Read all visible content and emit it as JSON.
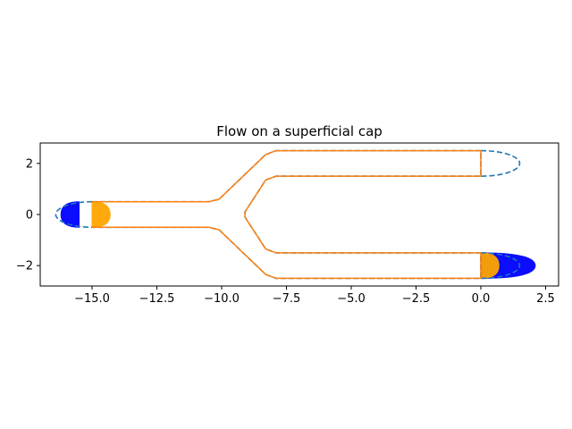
{
  "chart_data": {
    "type": "line",
    "title": "Flow on a superficial cap",
    "xlabel": "",
    "ylabel": "",
    "xlim": [
      -17.0,
      3.0
    ],
    "ylim": [
      -2.8,
      2.8
    ],
    "aspect": "equal",
    "grid": false,
    "xticks": [
      -15.0,
      -12.5,
      -10.0,
      -7.5,
      -5.0,
      -2.5,
      0.0,
      2.5
    ],
    "xtick_labels": [
      "−15.0",
      "−12.5",
      "−10.0",
      "−7.5",
      "−5.0",
      "−2.5",
      "0.0",
      "2.5"
    ],
    "yticks": [
      2,
      0,
      -2
    ],
    "ytick_labels": [
      "2",
      "0",
      "−2"
    ],
    "colors": {
      "dashed": "#1f77b4",
      "solid": "#ff7f0e",
      "left_cap": "#0000ff",
      "right_cap": "#0000ff",
      "inflow": "#ffa500"
    },
    "series": [
      {
        "style": "dashed",
        "x": [
          -15.0,
          -10.5,
          -10.1,
          -8.3,
          -7.9,
          0.0,
          0.0,
          -7.9,
          -8.3,
          -9.1,
          -9.1,
          -8.3,
          -7.9,
          0.0,
          0.0,
          -7.9,
          -8.3,
          -10.1,
          -10.5,
          -15.0
        ],
        "y": [
          0.5,
          0.5,
          0.6,
          2.35,
          2.5,
          2.5,
          1.5,
          1.5,
          1.35,
          0.1,
          -0.1,
          -1.35,
          -1.5,
          -1.5,
          -2.5,
          -2.5,
          -2.35,
          -0.6,
          -0.5,
          -0.5
        ]
      },
      {
        "style": "solid",
        "x": [
          -15.0,
          -10.5,
          -10.1,
          -8.3,
          -7.9,
          0.0,
          0.0,
          -7.9,
          -8.3,
          -9.1,
          -9.1,
          -8.3,
          -7.9,
          0.0,
          0.0,
          -7.9,
          -8.3,
          -10.1,
          -10.5,
          -15.0
        ],
        "y": [
          0.5,
          0.5,
          0.6,
          2.35,
          2.5,
          2.5,
          1.5,
          1.5,
          1.35,
          0.1,
          -0.1,
          -1.35,
          -1.5,
          -1.5,
          -2.5,
          -2.5,
          -2.35,
          -0.6,
          -0.5,
          -0.5
        ]
      }
    ],
    "end_caps": [
      {
        "style": "dashed",
        "center": [
          0.0,
          2.0
        ],
        "half_height": 0.5,
        "extent": 1.5
      },
      {
        "style": "dashed",
        "center": [
          0.0,
          -2.0
        ],
        "half_height": 0.5,
        "extent": 1.5
      },
      {
        "style": "dashed",
        "center": [
          -15.0,
          0.0
        ],
        "half_height": 0.5,
        "extent": -1.4
      }
    ],
    "flow_profiles": [
      {
        "name": "left-outflow",
        "color": "left_cap",
        "base_x": -15.5,
        "center_y": 0.0,
        "half_height": 0.5,
        "peak": -0.7
      },
      {
        "name": "left-inflow",
        "color": "inflow",
        "base_x": -15.0,
        "center_y": 0.0,
        "half_height": 0.5,
        "peak": 0.7
      },
      {
        "name": "right-outflow",
        "color": "right_cap",
        "base_x": 0.0,
        "center_y": -2.0,
        "half_height": 0.5,
        "peak": 2.1
      },
      {
        "name": "right-inflow",
        "color": "inflow",
        "base_x": 0.0,
        "center_y": -2.0,
        "half_height": 0.5,
        "peak": 0.7
      }
    ]
  }
}
